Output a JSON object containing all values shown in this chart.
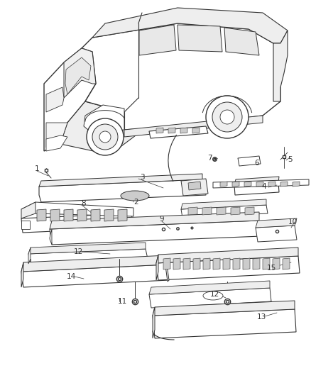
{
  "background_color": "#ffffff",
  "line_color": "#333333",
  "fig_width": 4.38,
  "fig_height": 5.33,
  "dpi": 100
}
